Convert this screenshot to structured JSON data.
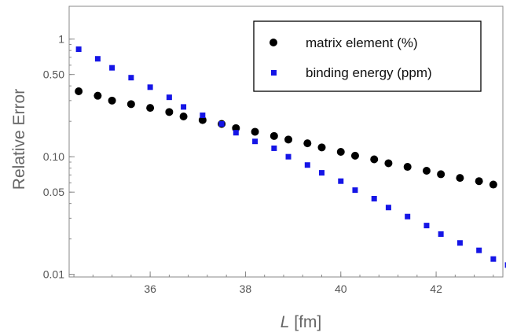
{
  "chart_data": {
    "type": "scatter",
    "title": "",
    "xlabel_symbol": "L",
    "xlabel_unit": " [fm]",
    "ylabel": "Relative Error",
    "xlim": [
      34.3,
      43.4
    ],
    "ylim": [
      0.0095,
      1.9
    ],
    "yscale": "log",
    "xticks": [
      36,
      38,
      40,
      42
    ],
    "xtick_labels": [
      "36",
      "38",
      "40",
      "42"
    ],
    "yticks": [
      0.01,
      0.05,
      0.1,
      0.5,
      1
    ],
    "ytick_labels": [
      "0.01",
      "0.05",
      "0.10",
      "0.50",
      "1"
    ],
    "grid": false,
    "legend_position": "top-right",
    "series": [
      {
        "name": "matrix element (%)",
        "marker": "circle",
        "color": "#000000",
        "x": [
          34.5,
          34.9,
          35.2,
          35.6,
          36.0,
          36.4,
          36.7,
          37.1,
          37.5,
          37.8,
          38.2,
          38.6,
          38.9,
          39.3,
          39.6,
          40.0,
          40.3,
          40.7,
          41.0,
          41.4,
          41.8,
          42.1,
          42.5,
          42.9,
          43.2
        ],
        "y": [
          0.36,
          0.33,
          0.3,
          0.28,
          0.26,
          0.24,
          0.22,
          0.205,
          0.19,
          0.175,
          0.163,
          0.15,
          0.14,
          0.13,
          0.12,
          0.11,
          0.102,
          0.095,
          0.088,
          0.082,
          0.076,
          0.071,
          0.066,
          0.062,
          0.058
        ]
      },
      {
        "name": "binding energy (ppm)",
        "marker": "square",
        "color": "#1515e6",
        "x": [
          34.5,
          34.9,
          35.2,
          35.6,
          36.0,
          36.4,
          36.7,
          37.1,
          37.5,
          37.8,
          38.2,
          38.6,
          38.9,
          39.3,
          39.6,
          40.0,
          40.3,
          40.7,
          41.0,
          41.4,
          41.8,
          42.1,
          42.5,
          42.9,
          43.2,
          43.5
        ],
        "y": [
          0.82,
          0.68,
          0.57,
          0.47,
          0.39,
          0.32,
          0.265,
          0.225,
          0.19,
          0.16,
          0.135,
          0.118,
          0.1,
          0.085,
          0.073,
          0.062,
          0.052,
          0.044,
          0.037,
          0.031,
          0.026,
          0.022,
          0.0185,
          0.016,
          0.0135,
          0.012
        ]
      }
    ]
  }
}
